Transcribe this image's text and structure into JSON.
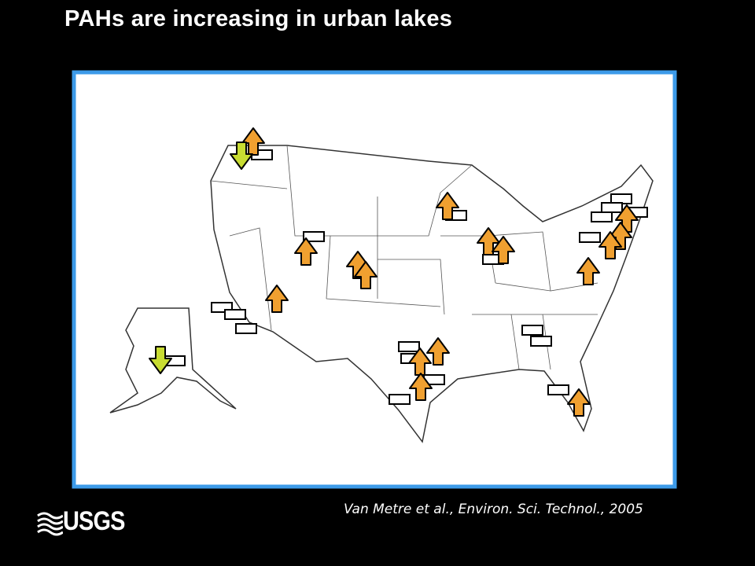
{
  "title": "PAHs are increasing in urban lakes",
  "citation": "Van Metre et al., Environ. Sci. Technol., 2005",
  "logo": {
    "text": "USGS"
  }
}
